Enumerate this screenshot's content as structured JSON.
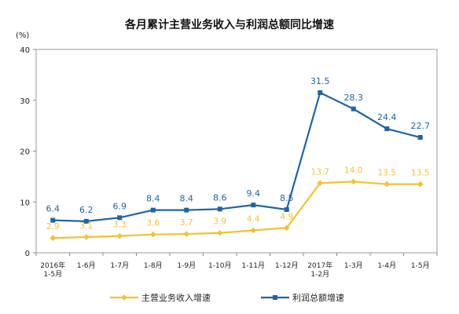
{
  "chart_data": {
    "type": "line",
    "title": "各月累计主营业务收入与利润总额同比增速",
    "ylabel": "(%)",
    "ylim": [
      0,
      40
    ],
    "yticks": [
      0,
      10,
      20,
      30,
      40
    ],
    "categories": [
      [
        "2016年",
        "1-5月"
      ],
      [
        "1-6月"
      ],
      [
        "1-7月"
      ],
      [
        "1-8月"
      ],
      [
        "1-9月"
      ],
      [
        "1-10月"
      ],
      [
        "1-11月"
      ],
      [
        "1-12月"
      ],
      [
        "2017年",
        "1-2月"
      ],
      [
        "1-3月"
      ],
      [
        "1-4月"
      ],
      [
        "1-5月"
      ]
    ],
    "series": [
      {
        "name": "主营业务收入增速",
        "color": "#f2c230",
        "marker": "diamond",
        "values": [
          2.9,
          3.1,
          3.3,
          3.6,
          3.7,
          3.9,
          4.4,
          4.9,
          13.7,
          14.0,
          13.5,
          13.5
        ],
        "labels": [
          "2.9",
          "3.1",
          "3.3",
          "3.6",
          "3.7",
          "3.9",
          "4.4",
          "4.9",
          "13.7",
          "14.0",
          "13.5",
          "13.5"
        ]
      },
      {
        "name": "利润总额增速",
        "color": "#1f64a6",
        "marker": "square",
        "values": [
          6.4,
          6.2,
          6.9,
          8.4,
          8.4,
          8.6,
          9.4,
          8.5,
          31.5,
          28.3,
          24.4,
          22.7
        ],
        "labels": [
          "6.4",
          "6.2",
          "6.9",
          "8.4",
          "8.4",
          "8.6",
          "9.4",
          "8.5",
          "31.5",
          "28.3",
          "24.4",
          "22.7"
        ]
      }
    ],
    "grid": false,
    "legend_position": "bottom"
  }
}
